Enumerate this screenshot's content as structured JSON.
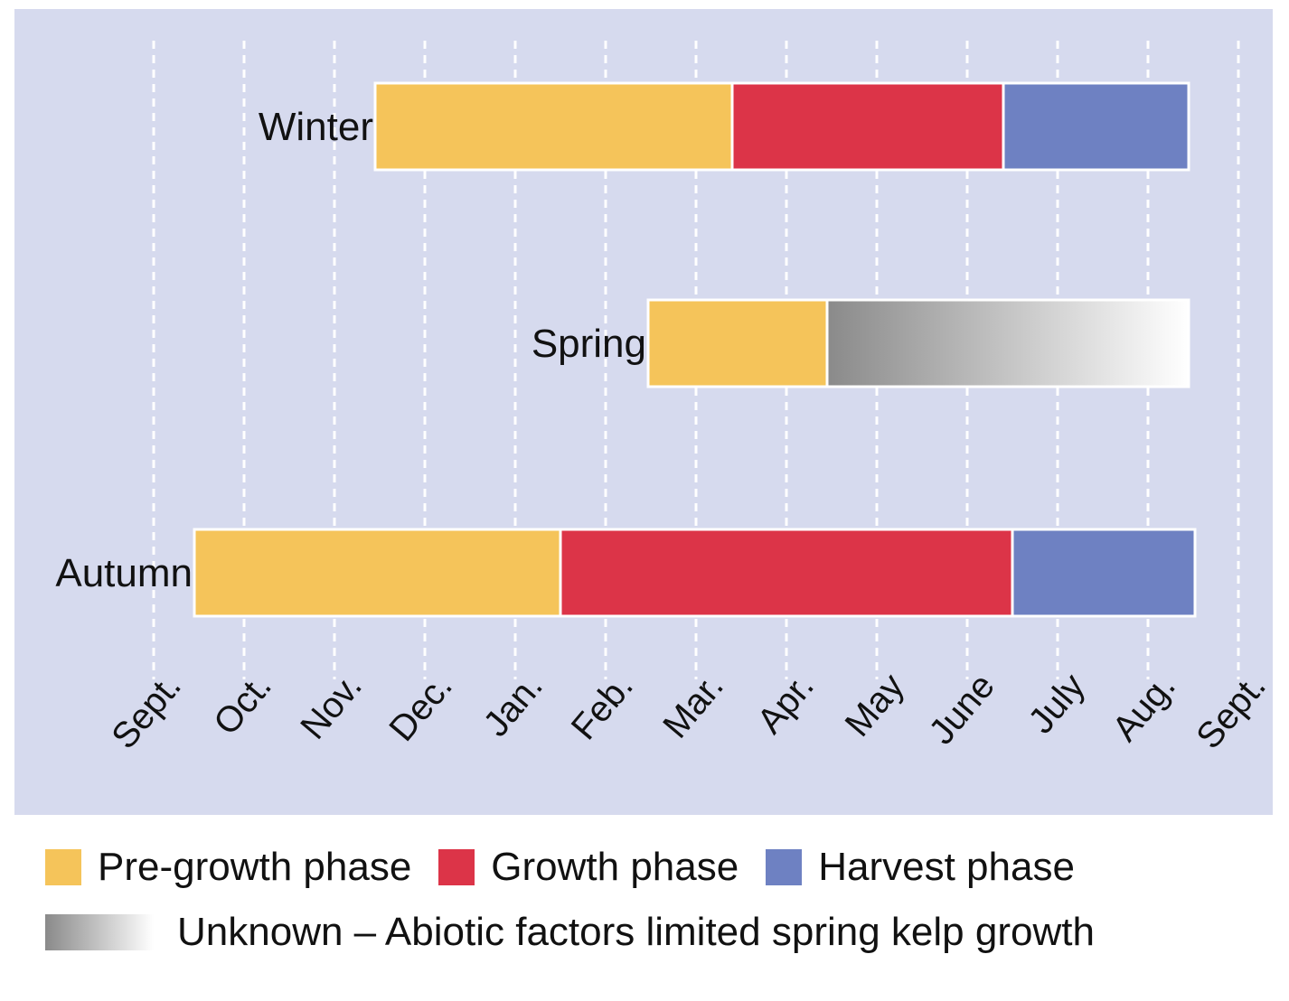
{
  "chart_data": {
    "type": "gantt",
    "x_axis": {
      "ticks": [
        "Sept.",
        "Oct.",
        "Nov.",
        "Dec.",
        "Jan.",
        "Feb.",
        "Mar.",
        "Apr.",
        "May",
        "June",
        "July",
        "Aug.",
        "Sept."
      ],
      "range_months": [
        0,
        12
      ],
      "grid": "dashed vertical"
    },
    "rows": [
      {
        "label": "Winter",
        "segments": [
          {
            "phase": "Pre-growth phase",
            "start": 2.45,
            "end": 6.4
          },
          {
            "phase": "Growth phase",
            "start": 6.4,
            "end": 9.4
          },
          {
            "phase": "Harvest phase",
            "start": 9.4,
            "end": 11.45
          }
        ]
      },
      {
        "label": "Spring",
        "segments": [
          {
            "phase": "Pre-growth phase",
            "start": 5.47,
            "end": 7.45
          },
          {
            "phase": "Unknown",
            "start": 7.45,
            "end": 11.45
          }
        ]
      },
      {
        "label": "Autumn",
        "segments": [
          {
            "phase": "Pre-growth phase",
            "start": 0.45,
            "end": 4.5
          },
          {
            "phase": "Growth phase",
            "start": 4.5,
            "end": 9.5
          },
          {
            "phase": "Harvest phase",
            "start": 9.5,
            "end": 11.52
          }
        ]
      }
    ],
    "legend": [
      {
        "key": "Pre-growth phase",
        "label": "Pre-growth phase",
        "color": "#f5c45a"
      },
      {
        "key": "Growth phase",
        "label": "Growth phase",
        "color": "#dc3448"
      },
      {
        "key": "Harvest phase",
        "label": "Harvest phase",
        "color": "#6e81c2"
      },
      {
        "key": "Unknown",
        "label": "Unknown – Abiotic factors limited spring kelp growth",
        "gradient": [
          "#8a8a8a",
          "#ffffff"
        ]
      }
    ],
    "colors": {
      "background": "#d6daee",
      "pre_growth": "#f5c45a",
      "growth": "#dc3448",
      "harvest": "#6e81c2",
      "unknown_start": "#8a8a8a",
      "unknown_end": "#ffffff",
      "grid": "#ffffff",
      "segment_border": "#ffffff"
    }
  }
}
